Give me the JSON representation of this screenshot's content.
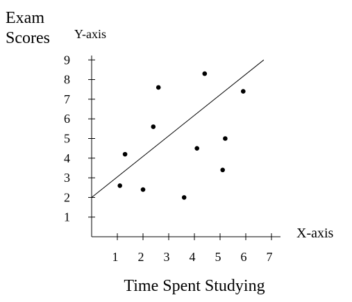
{
  "chart_data": {
    "type": "scatter",
    "title": "",
    "ylabel_lines": [
      "Exam",
      "Scores"
    ],
    "y_axis_tag": "Y-axis",
    "x_axis_tag": "X-axis",
    "xlabel": "Time Spent Studying",
    "xlim": [
      0,
      7
    ],
    "ylim": [
      0,
      9.5
    ],
    "x_ticks": [
      1,
      2,
      3,
      4,
      5,
      6,
      7
    ],
    "y_ticks": [
      1,
      2,
      3,
      4,
      5,
      6,
      7,
      8,
      9
    ],
    "grid": false,
    "points": [
      {
        "x": 1.1,
        "y": 2.6
      },
      {
        "x": 1.3,
        "y": 4.2
      },
      {
        "x": 2.0,
        "y": 2.4
      },
      {
        "x": 2.4,
        "y": 5.6
      },
      {
        "x": 2.6,
        "y": 7.6
      },
      {
        "x": 3.6,
        "y": 2.0
      },
      {
        "x": 4.1,
        "y": 4.5
      },
      {
        "x": 4.4,
        "y": 8.3
      },
      {
        "x": 5.1,
        "y": 3.4
      },
      {
        "x": 5.2,
        "y": 5.0
      },
      {
        "x": 5.9,
        "y": 7.4
      }
    ],
    "trend_line": {
      "x1": 0,
      "y1": 2.0,
      "x2": 6.7,
      "y2": 9.0
    }
  }
}
